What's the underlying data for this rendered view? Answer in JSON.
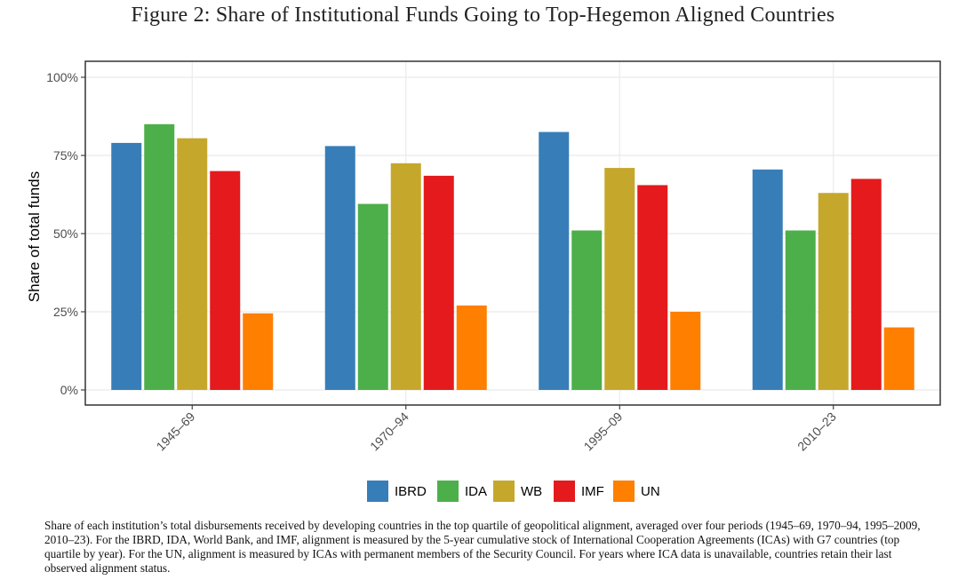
{
  "chart_data": {
    "type": "bar",
    "title": "Figure 2: Share of Institutional Funds Going to Top-Hegemon Aligned Countries",
    "xlabel": "",
    "ylabel": "Share of total funds",
    "ylim": [
      0,
      100
    ],
    "yticks": [
      "0%",
      "25%",
      "50%",
      "75%",
      "100%"
    ],
    "ytick_values": [
      0,
      25,
      50,
      75,
      100
    ],
    "categories": [
      "1945–69",
      "1970–94",
      "1995–09",
      "2010–23"
    ],
    "series": [
      {
        "name": "IBRD",
        "color": "#377EB8",
        "values": [
          79,
          78,
          82.5,
          70.5
        ]
      },
      {
        "name": "IDA",
        "color": "#4DAF4A",
        "values": [
          85,
          59.5,
          51,
          51
        ]
      },
      {
        "name": "WB",
        "color": "#C5A82B",
        "values": [
          80.5,
          72.5,
          71,
          63
        ]
      },
      {
        "name": "IMF",
        "color": "#E41A1C",
        "values": [
          70,
          68.5,
          65.5,
          67.5
        ]
      },
      {
        "name": "UN",
        "color": "#FF7F00",
        "values": [
          24.5,
          27,
          25,
          20
        ]
      }
    ],
    "legend_position": "bottom",
    "grid": true
  },
  "caption": "Share of each institution’s total disbursements received by developing countries in the top quartile of geopolitical alignment, averaged over four periods (1945–69, 1970–94, 1995–2009, 2010–23). For the IBRD, IDA, World Bank, and IMF, alignment is measured by the 5-year cumulative stock of International Cooperation Agreements (ICAs) with G7 countries (top quartile by year). For the UN, alignment is measured by ICAs with permanent members of the Security Council. For years where ICA data is unavailable, countries retain their last observed alignment status."
}
